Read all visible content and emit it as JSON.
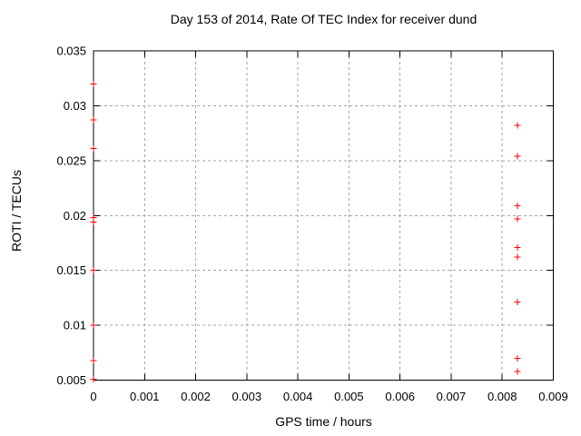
{
  "window": {
    "background_color": "#ffffff",
    "foreground_color": "#000000"
  },
  "chart_data": {
    "type": "scatter",
    "title": "Day 153 of 2014, Rate Of TEC Index for receiver dund",
    "xlabel": "GPS time / hours",
    "ylabel": "ROTI / TECUs",
    "xlim": [
      0,
      0.009
    ],
    "ylim": [
      0.005,
      0.035
    ],
    "x_ticks": {
      "values": [
        0,
        0.001,
        0.002,
        0.003,
        0.004,
        0.005,
        0.006,
        0.007,
        0.008,
        0.009
      ],
      "labels": [
        "0",
        "0.001",
        "0.002",
        "0.003",
        "0.004",
        "0.005",
        "0.006",
        "0.007",
        "0.008",
        "0.009"
      ]
    },
    "y_ticks": {
      "values": [
        0.005,
        0.01,
        0.015,
        0.02,
        0.025,
        0.03,
        0.035
      ],
      "labels": [
        "0.005",
        "0.01",
        "0.015",
        "0.02",
        "0.025",
        "0.03",
        "0.035"
      ]
    },
    "grid": {
      "show": true,
      "color": "#a6a6a6",
      "dash": [
        3,
        3
      ]
    },
    "legend": "none",
    "marker": {
      "shape": "plus",
      "color": "#ff0000",
      "size": 7
    },
    "series": [
      {
        "name": "ROTI",
        "points": [
          [
            0,
            0.032
          ],
          [
            0,
            0.0287
          ],
          [
            0,
            0.0261
          ],
          [
            0,
            0.0198
          ],
          [
            0,
            0.0194
          ],
          [
            0,
            0.015
          ],
          [
            0,
            0.01
          ],
          [
            0,
            0.0068
          ],
          [
            0,
            0.0051
          ],
          [
            0.0083,
            0.0282
          ],
          [
            0.0083,
            0.0254
          ],
          [
            0.0083,
            0.0209
          ],
          [
            0.0083,
            0.0197
          ],
          [
            0.0083,
            0.0171
          ],
          [
            0.0083,
            0.0162
          ],
          [
            0.0083,
            0.0121
          ],
          [
            0.0083,
            0.007
          ],
          [
            0.0083,
            0.0058
          ]
        ]
      }
    ]
  }
}
